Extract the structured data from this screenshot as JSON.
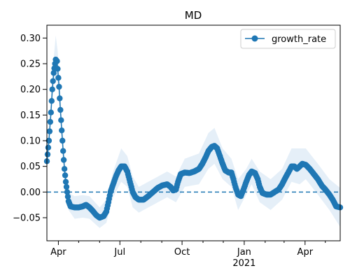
{
  "chart_data": {
    "type": "line",
    "title": "MD",
    "xlabel": "",
    "ylabel": "",
    "colors": {
      "series": "#1f77b4",
      "band": "#c6dbef",
      "zero_line": "#1f77b4"
    },
    "grid": false,
    "legend": {
      "placement": "top-right",
      "entries": [
        "growth_rate"
      ]
    },
    "x_domain": [
      "2020-03-15",
      "2021-05-23"
    ],
    "ylim": [
      -0.095,
      0.325
    ],
    "x_ticks": [
      {
        "date": "2020-04-01",
        "label": "Apr",
        "sublabel": ""
      },
      {
        "date": "2020-07-01",
        "label": "Jul",
        "sublabel": ""
      },
      {
        "date": "2020-10-01",
        "label": "Oct",
        "sublabel": ""
      },
      {
        "date": "2021-01-01",
        "label": "Jan",
        "sublabel": "2021"
      },
      {
        "date": "2021-04-01",
        "label": "Apr",
        "sublabel": ""
      }
    ],
    "x_minor_ticks": [
      "2020-05-01",
      "2020-06-01",
      "2020-08-01",
      "2020-09-01",
      "2020-11-01",
      "2020-12-01",
      "2021-02-01",
      "2021-03-01",
      "2021-05-01"
    ],
    "y_ticks": [
      {
        "value": 0.3,
        "label": "0.30"
      },
      {
        "value": 0.25,
        "label": "0.25"
      },
      {
        "value": 0.2,
        "label": "0.20"
      },
      {
        "value": 0.15,
        "label": "0.15"
      },
      {
        "value": 0.1,
        "label": "0.10"
      },
      {
        "value": 0.05,
        "label": "0.05"
      },
      {
        "value": 0.0,
        "label": "0.00"
      },
      {
        "value": -0.05,
        "label": "−0.05"
      }
    ],
    "reference_line": {
      "y": 0.0,
      "style": "dashed"
    },
    "series": [
      {
        "name": "growth_rate",
        "points": [
          [
            "2020-03-15",
            0.06
          ],
          [
            "2020-03-18",
            0.1
          ],
          [
            "2020-03-21",
            0.155
          ],
          [
            "2020-03-23",
            0.2
          ],
          [
            "2020-03-25",
            0.232
          ],
          [
            "2020-03-27",
            0.25
          ],
          [
            "2020-03-28",
            0.258
          ],
          [
            "2020-03-30",
            0.255
          ],
          [
            "2020-03-31",
            0.24
          ],
          [
            "2020-04-02",
            0.205
          ],
          [
            "2020-04-04",
            0.16
          ],
          [
            "2020-04-06",
            0.12
          ],
          [
            "2020-04-08",
            0.08
          ],
          [
            "2020-04-10",
            0.045
          ],
          [
            "2020-04-12",
            0.02
          ],
          [
            "2020-04-14",
            0.0
          ],
          [
            "2020-04-16",
            -0.018
          ],
          [
            "2020-04-19",
            -0.028
          ],
          [
            "2020-04-25",
            -0.03
          ],
          [
            "2020-05-01",
            -0.03
          ],
          [
            "2020-05-07",
            -0.028
          ],
          [
            "2020-05-12",
            -0.025
          ],
          [
            "2020-05-17",
            -0.03
          ],
          [
            "2020-05-22",
            -0.037
          ],
          [
            "2020-05-27",
            -0.045
          ],
          [
            "2020-06-01",
            -0.05
          ],
          [
            "2020-06-07",
            -0.047
          ],
          [
            "2020-06-11",
            -0.038
          ],
          [
            "2020-06-14",
            -0.02
          ],
          [
            "2020-06-17",
            0.0
          ],
          [
            "2020-06-21",
            0.015
          ],
          [
            "2020-06-25",
            0.03
          ],
          [
            "2020-06-29",
            0.042
          ],
          [
            "2020-07-03",
            0.05
          ],
          [
            "2020-07-08",
            0.05
          ],
          [
            "2020-07-12",
            0.04
          ],
          [
            "2020-07-16",
            0.02
          ],
          [
            "2020-07-20",
            0.0
          ],
          [
            "2020-07-24",
            -0.01
          ],
          [
            "2020-07-29",
            -0.015
          ],
          [
            "2020-08-05",
            -0.015
          ],
          [
            "2020-08-12",
            -0.008
          ],
          [
            "2020-08-19",
            0.0
          ],
          [
            "2020-08-26",
            0.008
          ],
          [
            "2020-09-02",
            0.013
          ],
          [
            "2020-09-09",
            0.015
          ],
          [
            "2020-09-14",
            0.01
          ],
          [
            "2020-09-18",
            0.003
          ],
          [
            "2020-09-22",
            0.005
          ],
          [
            "2020-09-25",
            0.02
          ],
          [
            "2020-09-29",
            0.035
          ],
          [
            "2020-10-05",
            0.038
          ],
          [
            "2020-10-12",
            0.037
          ],
          [
            "2020-10-19",
            0.04
          ],
          [
            "2020-10-26",
            0.045
          ],
          [
            "2020-10-31",
            0.055
          ],
          [
            "2020-11-05",
            0.068
          ],
          [
            "2020-11-09",
            0.08
          ],
          [
            "2020-11-14",
            0.088
          ],
          [
            "2020-11-18",
            0.09
          ],
          [
            "2020-11-22",
            0.085
          ],
          [
            "2020-11-26",
            0.07
          ],
          [
            "2020-11-30",
            0.055
          ],
          [
            "2020-12-04",
            0.042
          ],
          [
            "2020-12-09",
            0.038
          ],
          [
            "2020-12-13",
            0.038
          ],
          [
            "2020-12-16",
            0.025
          ],
          [
            "2020-12-19",
            0.01
          ],
          [
            "2020-12-23",
            -0.005
          ],
          [
            "2020-12-27",
            -0.008
          ],
          [
            "2020-12-31",
            0.005
          ],
          [
            "2021-01-04",
            0.02
          ],
          [
            "2021-01-08",
            0.033
          ],
          [
            "2021-01-12",
            0.04
          ],
          [
            "2021-01-17",
            0.037
          ],
          [
            "2021-01-21",
            0.025
          ],
          [
            "2021-01-24",
            0.01
          ],
          [
            "2021-01-28",
            -0.002
          ],
          [
            "2021-02-03",
            -0.005
          ],
          [
            "2021-02-09",
            -0.005
          ],
          [
            "2021-02-15",
            0.0
          ],
          [
            "2021-02-21",
            0.005
          ],
          [
            "2021-02-26",
            0.015
          ],
          [
            "2021-03-03",
            0.028
          ],
          [
            "2021-03-08",
            0.04
          ],
          [
            "2021-03-12",
            0.05
          ],
          [
            "2021-03-16",
            0.05
          ],
          [
            "2021-03-20",
            0.045
          ],
          [
            "2021-03-24",
            0.05
          ],
          [
            "2021-03-28",
            0.055
          ],
          [
            "2021-04-02",
            0.053
          ],
          [
            "2021-04-08",
            0.045
          ],
          [
            "2021-04-14",
            0.035
          ],
          [
            "2021-04-20",
            0.025
          ],
          [
            "2021-04-26",
            0.012
          ],
          [
            "2021-05-01",
            0.005
          ],
          [
            "2021-05-07",
            -0.005
          ],
          [
            "2021-05-12",
            -0.015
          ],
          [
            "2021-05-17",
            -0.028
          ],
          [
            "2021-05-23",
            -0.03
          ]
        ]
      }
    ],
    "uncertainty_band": [
      [
        "2020-03-15",
        0.05,
        0.07
      ],
      [
        "2020-03-21",
        0.135,
        0.175
      ],
      [
        "2020-03-25",
        0.205,
        0.26
      ],
      [
        "2020-03-28",
        0.225,
        0.305
      ],
      [
        "2020-03-31",
        0.21,
        0.275
      ],
      [
        "2020-04-04",
        0.135,
        0.185
      ],
      [
        "2020-04-08",
        0.06,
        0.1
      ],
      [
        "2020-04-12",
        0.005,
        0.035
      ],
      [
        "2020-04-16",
        -0.035,
        -0.002
      ],
      [
        "2020-04-25",
        -0.052,
        -0.008
      ],
      [
        "2020-05-07",
        -0.05,
        -0.006
      ],
      [
        "2020-05-17",
        -0.052,
        -0.008
      ],
      [
        "2020-06-01",
        -0.07,
        -0.03
      ],
      [
        "2020-06-11",
        -0.06,
        -0.015
      ],
      [
        "2020-06-21",
        -0.01,
        0.04
      ],
      [
        "2020-07-03",
        0.02,
        0.085
      ],
      [
        "2020-07-12",
        0.01,
        0.07
      ],
      [
        "2020-07-20",
        -0.03,
        0.03
      ],
      [
        "2020-07-29",
        -0.04,
        0.01
      ],
      [
        "2020-08-19",
        -0.025,
        0.025
      ],
      [
        "2020-09-09",
        -0.01,
        0.04
      ],
      [
        "2020-09-22",
        -0.02,
        0.03
      ],
      [
        "2020-10-05",
        0.01,
        0.065
      ],
      [
        "2020-10-26",
        0.015,
        0.075
      ],
      [
        "2020-11-09",
        0.045,
        0.115
      ],
      [
        "2020-11-18",
        0.055,
        0.125
      ],
      [
        "2020-11-30",
        0.025,
        0.085
      ],
      [
        "2020-12-13",
        0.01,
        0.065
      ],
      [
        "2020-12-23",
        -0.035,
        0.025
      ],
      [
        "2021-01-04",
        -0.005,
        0.045
      ],
      [
        "2021-01-12",
        0.015,
        0.065
      ],
      [
        "2021-01-24",
        -0.02,
        0.04
      ],
      [
        "2021-02-09",
        -0.035,
        0.025
      ],
      [
        "2021-02-26",
        -0.015,
        0.045
      ],
      [
        "2021-03-12",
        0.02,
        0.085
      ],
      [
        "2021-03-24",
        0.015,
        0.085
      ],
      [
        "2021-04-02",
        0.025,
        0.085
      ],
      [
        "2021-04-20",
        -0.005,
        0.055
      ],
      [
        "2021-05-07",
        -0.035,
        0.025
      ],
      [
        "2021-05-23",
        -0.068,
        0.008
      ]
    ]
  }
}
